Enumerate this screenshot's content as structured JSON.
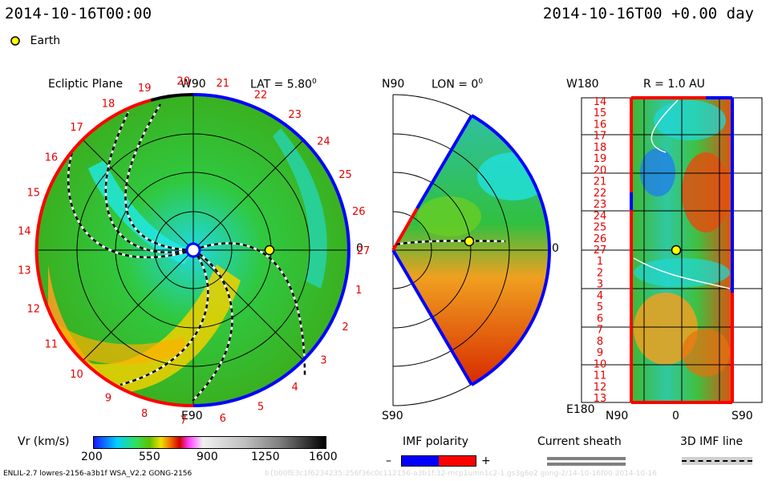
{
  "header": {
    "datetime_left": "2014-10-16T00:00",
    "datetime_right": "2014-10-16T00 +0.00 day",
    "legend_earth": "Earth"
  },
  "ecliptic": {
    "title": "Ecliptic Plane",
    "top_label": "W90",
    "bottom_label": "E90",
    "right_label": "0",
    "lat_label": "LAT = 5.80",
    "lat_sup": "0",
    "sector_numbers": [
      "1",
      "2",
      "3",
      "4",
      "5",
      "6",
      "7",
      "8",
      "9",
      "10",
      "11",
      "12",
      "13",
      "14",
      "15",
      "16",
      "17",
      "18",
      "19",
      "20",
      "21",
      "22",
      "23",
      "24",
      "25",
      "26",
      "27"
    ]
  },
  "meridional": {
    "top_label": "N90",
    "bottom_label": "S90",
    "lon_label": "LON = 0",
    "lon_sup": "0",
    "right_label": "0"
  },
  "sphere": {
    "title": "R = 1.0 AU",
    "top_left_label": "W180",
    "bottom_left_label": "E180",
    "bottom_labels": [
      "N90",
      "0",
      "S90"
    ],
    "rows": [
      "14",
      "15",
      "16",
      "17",
      "18",
      "19",
      "20",
      "21",
      "22",
      "23",
      "24",
      "25",
      "26",
      "27",
      "1",
      "2",
      "3",
      "4",
      "5",
      "6",
      "7",
      "8",
      "9",
      "10",
      "11",
      "12",
      "13"
    ]
  },
  "colorbar": {
    "title": "Vr (km/s)",
    "ticks": [
      "200",
      "550",
      "900",
      "1250",
      "1600"
    ],
    "range": [
      200,
      1600
    ]
  },
  "imf": {
    "title": "IMF polarity",
    "minus": "–",
    "plus": "+",
    "colors": {
      "negative": "#0000ff",
      "positive": "#ff0000"
    }
  },
  "current_sheath": {
    "title": "Current sheath"
  },
  "imf_line": {
    "title": "3D IMF line"
  },
  "footer": {
    "credit": "ENLIL-2.7 lowres-2156-a3b1f WSA_V2.2 GONG-2156",
    "faint": "b{b00fE3c1f6234235:256f36c0c112156-a3b1f:32-mcp1umn1c2-1.gs3g6o2 gong-2/14-10-16f00   2014-10-16"
  },
  "colors": {
    "background": "#ffffff",
    "field_mid": "#22c03a",
    "field_fast": "#e85a08",
    "field_slow": "#20e0e0"
  },
  "icons": {
    "earth": "earth-marker-icon",
    "sun": "sun-icon"
  }
}
